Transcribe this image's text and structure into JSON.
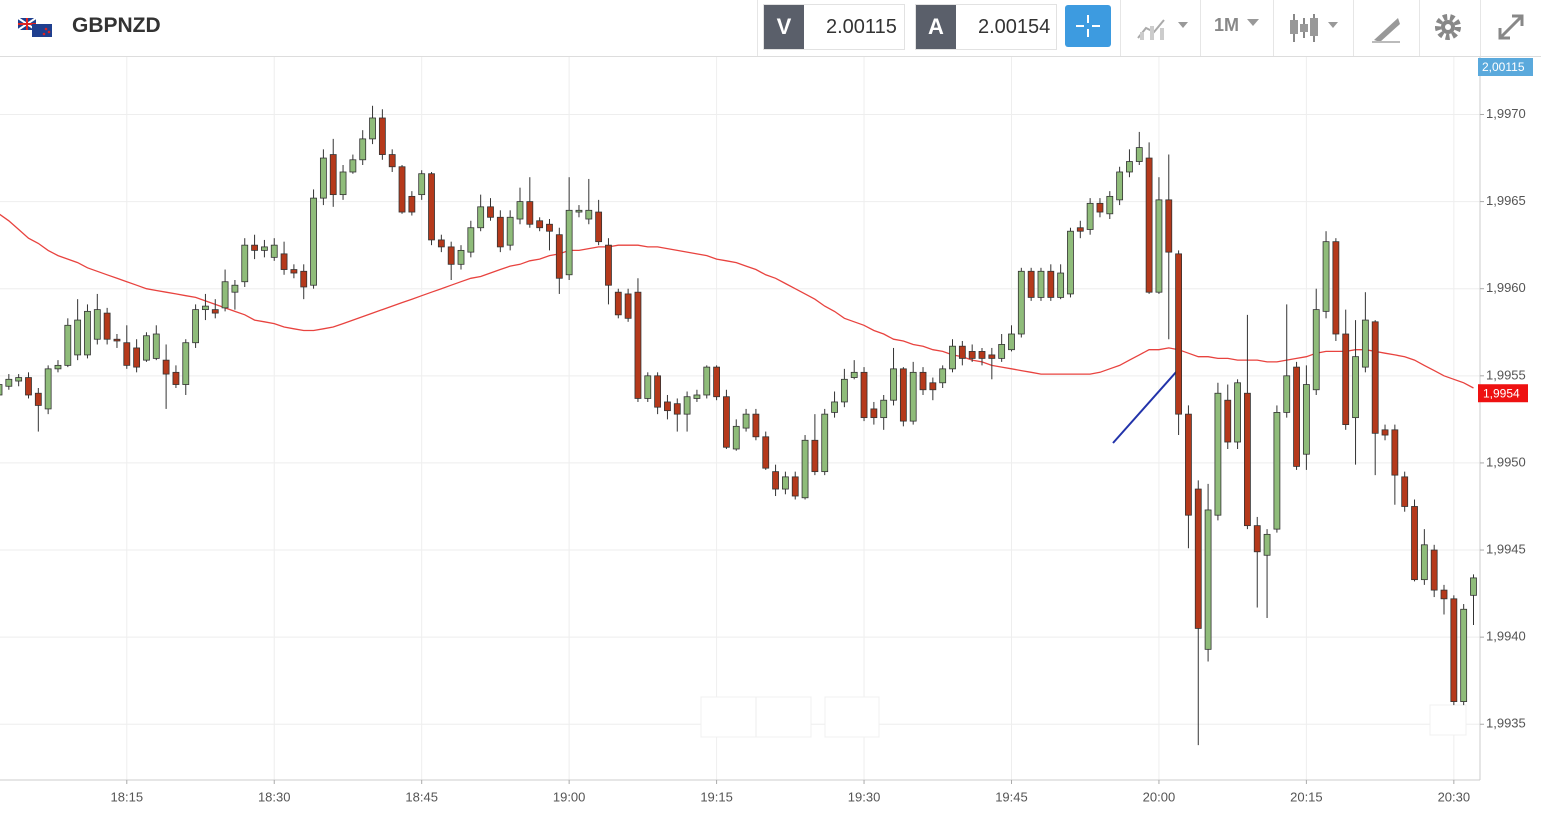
{
  "header": {
    "symbol": "GBPNZD",
    "bid_label": "V",
    "bid": "2.00115",
    "ask_label": "A",
    "ask": "2.00154",
    "timeframe": "1M"
  },
  "chart_data": {
    "type": "candlestick",
    "categories": [
      null,
      null,
      null,
      null,
      null,
      null,
      null,
      null,
      null,
      null,
      null,
      null,
      null,
      "18:15",
      null,
      null,
      null,
      null,
      null,
      null,
      null,
      null,
      null,
      null,
      null,
      null,
      null,
      null,
      "18:30",
      null,
      null,
      null,
      null,
      null,
      null,
      null,
      null,
      null,
      null,
      null,
      null,
      null,
      null,
      "18:45",
      null,
      null,
      null,
      null,
      null,
      null,
      null,
      null,
      null,
      null,
      null,
      null,
      null,
      null,
      "19:00",
      null,
      null,
      null,
      null,
      null,
      null,
      null,
      null,
      null,
      null,
      null,
      null,
      null,
      null,
      "19:15",
      null,
      null,
      null,
      null,
      null,
      null,
      null,
      null,
      null,
      null,
      null,
      null,
      null,
      null,
      "19:30",
      null,
      null,
      null,
      null,
      null,
      null,
      null,
      null,
      null,
      null,
      null,
      null,
      null,
      null,
      "19:45",
      null,
      null,
      null,
      null,
      null,
      null,
      null,
      null,
      null,
      null,
      null,
      null,
      null,
      null,
      "20:00",
      null,
      null,
      null,
      null,
      null,
      null,
      null,
      null,
      null,
      null,
      null,
      null,
      null,
      null,
      "20:15",
      null,
      null,
      null,
      null,
      null,
      null,
      null,
      null,
      null,
      null,
      null,
      null,
      null,
      null,
      "20:30",
      null,
      null
    ],
    "candles": {
      "up_color": "#8fbc7a",
      "down_color": "#b5391b",
      "open": [
        1.99539,
        1.99544,
        1.99547,
        1.99549,
        1.9954,
        1.99531,
        1.99554,
        1.99556,
        1.99562,
        1.99562,
        1.99571,
        1.99586,
        1.99571,
        1.99569,
        1.99566,
        1.99559,
        1.9956,
        1.99559,
        1.99552,
        1.99545,
        1.99569,
        1.99588,
        1.99588,
        1.99589,
        1.99598,
        1.99604,
        1.99625,
        1.99622,
        1.99618,
        1.9962,
        1.99611,
        1.9961,
        1.99602,
        1.99652,
        1.99677,
        1.99654,
        1.99667,
        1.99674,
        1.99686,
        1.99698,
        1.99677,
        1.9967,
        1.99653,
        1.99654,
        1.99666,
        1.99628,
        1.99624,
        1.99614,
        1.99621,
        1.99635,
        1.99647,
        1.99641,
        1.99625,
        1.9964,
        1.9965,
        1.99639,
        1.99637,
        1.99631,
        1.99608,
        1.99644,
        1.9964,
        1.99644,
        1.99625,
        1.99598,
        1.99597,
        1.99598,
        1.99537,
        1.9955,
        1.99535,
        1.99534,
        1.99528,
        1.99537,
        1.99539,
        1.99555,
        1.99538,
        1.99508,
        1.9952,
        1.99528,
        1.99515,
        1.99495,
        1.99485,
        1.99492,
        1.9948,
        1.99513,
        1.99495,
        1.99529,
        1.99535,
        1.99549,
        1.99552,
        1.99531,
        1.99526,
        1.99536,
        1.99554,
        1.99524,
        1.99552,
        1.99546,
        1.99546,
        1.99554,
        1.99567,
        1.99564,
        1.99564,
        1.99562,
        1.9956,
        1.99565,
        1.99574,
        1.9961,
        1.99595,
        1.9961,
        1.99595,
        1.99597,
        1.99635,
        1.99634,
        1.99649,
        1.99643,
        1.99651,
        1.99667,
        1.99673,
        1.99675,
        1.99598,
        1.99651,
        1.9962,
        1.99528,
        1.99485,
        1.99393,
        1.9947,
        1.99536,
        1.99512,
        1.9954,
        1.99464,
        1.99447,
        1.99462,
        1.99529,
        1.99555,
        1.99505,
        1.99542,
        1.99587,
        1.99627,
        1.99574,
        1.99526,
        1.99555,
        1.99581,
        1.99519,
        1.99519,
        1.99492,
        1.99475,
        1.99433,
        1.9945,
        1.99427,
        1.99422,
        1.99363,
        1.99424
      ],
      "high": [
        1.99549,
        1.99551,
        1.99551,
        1.99552,
        1.99543,
        1.99556,
        1.99559,
        1.99583,
        1.99594,
        1.99591,
        1.99597,
        1.99589,
        1.99574,
        1.99579,
        1.99571,
        1.99575,
        1.99579,
        1.99568,
        1.99556,
        1.99571,
        1.99591,
        1.99597,
        1.99594,
        1.99611,
        1.99605,
        1.99629,
        1.99631,
        1.99628,
        1.99629,
        1.99627,
        1.99614,
        1.99614,
        1.99657,
        1.9968,
        1.99686,
        1.99671,
        1.99677,
        1.99691,
        1.99705,
        1.99703,
        1.9968,
        1.99671,
        1.99656,
        1.99668,
        1.99667,
        1.99631,
        1.99627,
        1.99625,
        1.99639,
        1.99654,
        1.99652,
        1.99645,
        1.99645,
        1.99658,
        1.99664,
        1.99641,
        1.9964,
        1.99635,
        1.99664,
        1.99648,
        1.99663,
        1.99651,
        1.99629,
        1.996,
        1.996,
        1.99606,
        1.99552,
        1.99552,
        1.99539,
        1.99537,
        1.99541,
        1.99542,
        1.99556,
        1.99556,
        1.99542,
        1.99525,
        1.99531,
        1.99531,
        1.99518,
        1.99499,
        1.99495,
        1.99495,
        1.99516,
        1.99528,
        1.99531,
        1.99541,
        1.99554,
        1.99559,
        1.99555,
        1.99535,
        1.99539,
        1.99566,
        1.99555,
        1.99558,
        1.99555,
        1.99549,
        1.99556,
        1.99571,
        1.9957,
        1.99568,
        1.99566,
        1.99566,
        1.99574,
        1.99579,
        1.99612,
        1.99612,
        1.99612,
        1.99614,
        1.99614,
        1.99635,
        1.99639,
        1.99652,
        1.99652,
        1.99656,
        1.9967,
        1.9968,
        1.9969,
        1.99684,
        1.99664,
        1.99677,
        1.99622,
        1.99533,
        1.9949,
        1.99488,
        1.99546,
        1.99545,
        1.99548,
        1.99585,
        1.99469,
        1.99462,
        1.99533,
        1.99591,
        1.99558,
        1.99556,
        1.996,
        1.99633,
        1.99629,
        1.99588,
        1.99582,
        1.99598,
        1.99582,
        1.99522,
        1.99522,
        1.99495,
        1.99479,
        1.99462,
        1.99453,
        1.9943,
        1.99424,
        1.99419,
        1.99436
      ],
      "low": [
        1.99536,
        1.99542,
        1.99544,
        1.99537,
        1.99518,
        1.99528,
        1.99552,
        1.99555,
        1.99559,
        1.9956,
        1.99568,
        1.99568,
        1.99566,
        1.99554,
        1.99552,
        1.99558,
        1.99559,
        1.99531,
        1.99543,
        1.99539,
        1.99566,
        1.99582,
        1.99583,
        1.99587,
        1.99588,
        1.99601,
        1.99617,
        1.99618,
        1.99616,
        1.99608,
        1.99606,
        1.99594,
        1.996,
        1.99648,
        1.99647,
        1.99651,
        1.99666,
        1.99671,
        1.99683,
        1.99674,
        1.99667,
        1.99643,
        1.99642,
        1.99651,
        1.99625,
        1.99621,
        1.99605,
        1.99611,
        1.99618,
        1.99633,
        1.99639,
        1.99621,
        1.99622,
        1.99637,
        1.99635,
        1.99633,
        1.99622,
        1.99597,
        1.99605,
        1.99641,
        1.99637,
        1.99625,
        1.99591,
        1.99583,
        1.99581,
        1.99535,
        1.99535,
        1.99528,
        1.99525,
        1.99518,
        1.99518,
        1.99535,
        1.99537,
        1.99536,
        1.99508,
        1.99507,
        1.99518,
        1.99513,
        1.99496,
        1.99481,
        1.99482,
        1.99479,
        1.99479,
        1.99493,
        1.99493,
        1.99526,
        1.99532,
        1.99548,
        1.99524,
        1.99522,
        1.99519,
        1.99533,
        1.99521,
        1.99522,
        1.99539,
        1.99536,
        1.99543,
        1.99552,
        1.99556,
        1.99558,
        1.99556,
        1.99548,
        1.99558,
        1.99564,
        1.99572,
        1.99593,
        1.99593,
        1.99593,
        1.99594,
        1.99595,
        1.99629,
        1.99631,
        1.99641,
        1.9964,
        1.99648,
        1.99664,
        1.99671,
        1.99597,
        1.99597,
        1.99571,
        1.99516,
        1.99451,
        1.99338,
        1.99386,
        1.99467,
        1.99508,
        1.99508,
        1.99462,
        1.99417,
        1.99411,
        1.9946,
        1.99526,
        1.99496,
        1.99496,
        1.99539,
        1.99583,
        1.9957,
        1.99519,
        1.99499,
        1.99552,
        1.99493,
        1.99513,
        1.99476,
        1.99472,
        1.99432,
        1.9943,
        1.99423,
        1.99413,
        1.99361,
        1.99361,
        1.99407
      ],
      "close": [
        1.99545,
        1.99548,
        1.99549,
        1.99539,
        1.99533,
        1.99554,
        1.99556,
        1.99579,
        1.99582,
        1.99587,
        1.99588,
        1.99571,
        1.9957,
        1.99556,
        1.99555,
        1.99573,
        1.99574,
        1.99551,
        1.99545,
        1.99569,
        1.99588,
        1.9959,
        1.99586,
        1.99604,
        1.99602,
        1.99625,
        1.99622,
        1.99624,
        1.99625,
        1.99611,
        1.99609,
        1.99601,
        1.99652,
        1.99675,
        1.99654,
        1.99667,
        1.99674,
        1.99686,
        1.99698,
        1.99677,
        1.9967,
        1.99644,
        1.99644,
        1.99666,
        1.99628,
        1.99624,
        1.99614,
        1.99622,
        1.99635,
        1.99647,
        1.99641,
        1.99624,
        1.99641,
        1.9965,
        1.99637,
        1.99635,
        1.99633,
        1.99606,
        1.99645,
        1.99645,
        1.99645,
        1.99627,
        1.99602,
        1.99585,
        1.99583,
        1.99537,
        1.9955,
        1.99532,
        1.9953,
        1.99528,
        1.99538,
        1.99539,
        1.99555,
        1.99538,
        1.99509,
        1.99521,
        1.99528,
        1.99515,
        1.99497,
        1.99485,
        1.99492,
        1.99481,
        1.99513,
        1.99495,
        1.99528,
        1.99535,
        1.99548,
        1.99552,
        1.99526,
        1.99526,
        1.99536,
        1.99554,
        1.99524,
        1.99552,
        1.99542,
        1.99542,
        1.99554,
        1.99567,
        1.9956,
        1.9956,
        1.9956,
        1.9956,
        1.99568,
        1.99574,
        1.9961,
        1.99595,
        1.9961,
        1.99595,
        1.99609,
        1.99633,
        1.99633,
        1.99649,
        1.99644,
        1.99653,
        1.99667,
        1.99673,
        1.99681,
        1.99598,
        1.99651,
        1.99621,
        1.99528,
        1.9947,
        1.99405,
        1.99473,
        1.9954,
        1.99512,
        1.99546,
        1.99464,
        1.99449,
        1.99459,
        1.99529,
        1.9955,
        1.99498,
        1.99545,
        1.99588,
        1.99627,
        1.99574,
        1.99522,
        1.99561,
        1.99582,
        1.99517,
        1.99516,
        1.99493,
        1.99475,
        1.99433,
        1.99453,
        1.99427,
        1.99422,
        1.99363,
        1.99416,
        1.99434
      ]
    },
    "moving_average": {
      "color": "#e8433f",
      "values": [
        1.99643,
        1.99639,
        1.99634,
        1.99629,
        1.99626,
        1.99622,
        1.99619,
        1.99617,
        1.99615,
        1.99612,
        1.9961,
        1.99608,
        1.99606,
        1.99604,
        1.99602,
        1.996,
        1.99599,
        1.99598,
        1.99597,
        1.99596,
        1.99595,
        1.99593,
        1.99591,
        1.99589,
        1.99587,
        1.99585,
        1.99582,
        1.99581,
        1.9958,
        1.99578,
        1.99577,
        1.99576,
        1.99576,
        1.99577,
        1.99578,
        1.9958,
        1.99582,
        1.99584,
        1.99586,
        1.99588,
        1.9959,
        1.99592,
        1.99594,
        1.99596,
        1.99598,
        1.996,
        1.99602,
        1.99604,
        1.99606,
        1.99607,
        1.99609,
        1.99611,
        1.99613,
        1.99614,
        1.99616,
        1.99617,
        1.99619,
        1.9962,
        1.99622,
        1.99622,
        1.99623,
        1.99624,
        1.99624,
        1.99625,
        1.99625,
        1.99625,
        1.99624,
        1.99624,
        1.99623,
        1.99622,
        1.99621,
        1.9962,
        1.99619,
        1.99617,
        1.99616,
        1.99615,
        1.99613,
        1.99611,
        1.99608,
        1.99606,
        1.99603,
        1.996,
        1.99597,
        1.99594,
        1.9959,
        1.99587,
        1.99583,
        1.99581,
        1.99579,
        1.99576,
        1.99574,
        1.99571,
        1.9957,
        1.99568,
        1.99567,
        1.99565,
        1.99564,
        1.99562,
        1.99561,
        1.99559,
        1.99558,
        1.99556,
        1.99555,
        1.99554,
        1.99553,
        1.99552,
        1.99551,
        1.99551,
        1.99551,
        1.99551,
        1.99551,
        1.99551,
        1.99552,
        1.99554,
        1.99556,
        1.99559,
        1.99562,
        1.99565,
        1.99565,
        1.99566,
        1.99565,
        1.99563,
        1.99561,
        1.99561,
        1.9956,
        1.9956,
        1.99559,
        1.99559,
        1.99559,
        1.99558,
        1.99558,
        1.99559,
        1.9956,
        1.99561,
        1.99563,
        1.99564,
        1.99564,
        1.99564,
        1.99565,
        1.99565,
        1.99564,
        1.99563,
        1.99562,
        1.99561,
        1.99559,
        1.99556,
        1.99553,
        1.9955,
        1.99548,
        1.99546,
        1.99543
      ]
    },
    "ylim": [
      1.99318,
      1.99733
    ],
    "yticks": [
      {
        "value": 1.9935,
        "label": "1,9935"
      },
      {
        "value": 1.994,
        "label": "1,9940"
      },
      {
        "value": 1.9945,
        "label": "1,9945"
      },
      {
        "value": 1.995,
        "label": "1,9950"
      },
      {
        "value": 1.9955,
        "label": "1,9955"
      },
      {
        "value": 1.996,
        "label": "1,9960"
      },
      {
        "value": 1.9965,
        "label": "1,9965"
      },
      {
        "value": 1.997,
        "label": "1,9970"
      }
    ],
    "grid": true,
    "last_price": {
      "value": 1.9954,
      "label": "1,9954",
      "color": "#ee1111"
    },
    "ask_badge": {
      "label": "2,00115",
      "color": "#5aa9dc"
    }
  }
}
